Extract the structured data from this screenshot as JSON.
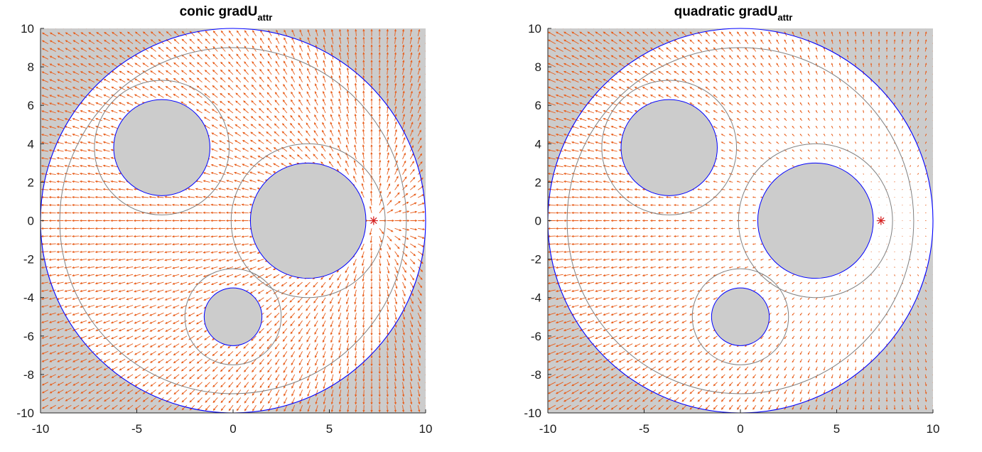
{
  "colors": {
    "background": "#ffffff",
    "obstacle_fill": "#cccccc",
    "boundary": "#0000ff",
    "contour": "#808080",
    "arrow": "#e85d1a",
    "goal": "#d62020"
  },
  "chart_data": [
    {
      "type": "quiver",
      "title": "conic gradU",
      "title_subscript": "attr",
      "xlim": [
        -10,
        10
      ],
      "ylim": [
        -10,
        10
      ],
      "xticks": [
        -10,
        -5,
        0,
        5,
        10
      ],
      "yticks": [
        -10,
        -8,
        -6,
        -4,
        -2,
        0,
        2,
        4,
        6,
        8,
        10
      ],
      "grid": false,
      "field": "conic",
      "goal": {
        "x": 7.3,
        "y": 0,
        "marker": "*"
      },
      "workspace": {
        "cx": 0,
        "cy": 0,
        "r": 10,
        "contour_r": 9
      },
      "obstacles": [
        {
          "cx": -3.7,
          "cy": 3.8,
          "r": 2.5,
          "contour_r": 3.5
        },
        {
          "cx": 3.9,
          "cy": 0,
          "r": 3.0,
          "contour_r": 4.0
        },
        {
          "cx": 0,
          "cy": -5,
          "r": 1.5,
          "contour_r": 2.5
        }
      ]
    },
    {
      "type": "quiver",
      "title": "quadratic gradU",
      "title_subscript": "attr",
      "xlim": [
        -10,
        10
      ],
      "ylim": [
        -10,
        10
      ],
      "xticks": [
        -10,
        -5,
        0,
        5,
        10
      ],
      "yticks": [
        -10,
        -8,
        -6,
        -4,
        -2,
        0,
        2,
        4,
        6,
        8,
        10
      ],
      "grid": false,
      "field": "quadratic",
      "goal": {
        "x": 7.3,
        "y": 0,
        "marker": "*"
      },
      "workspace": {
        "cx": 0,
        "cy": 0,
        "r": 10,
        "contour_r": 9
      },
      "obstacles": [
        {
          "cx": -3.7,
          "cy": 3.8,
          "r": 2.5,
          "contour_r": 3.5
        },
        {
          "cx": 3.9,
          "cy": 0,
          "r": 3.0,
          "contour_r": 4.0
        },
        {
          "cx": 0,
          "cy": -5,
          "r": 1.5,
          "contour_r": 2.5
        }
      ]
    }
  ]
}
